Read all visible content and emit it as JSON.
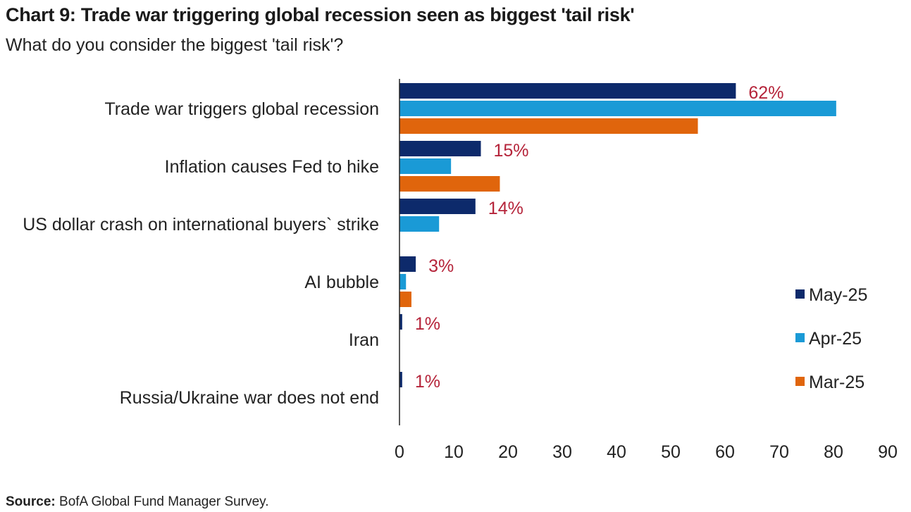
{
  "title": "Chart 9: Trade war triggering global recession seen as biggest 'tail risk'",
  "subtitle": "What do you consider the biggest 'tail risk'?",
  "source_label": "Source:",
  "source_text": "BofA Global Fund Manager Survey.",
  "chart_data": {
    "type": "bar",
    "orientation": "horizontal",
    "categories": [
      "Trade war triggers global recession",
      "Inflation causes Fed to hike",
      "US dollar crash on international buyers` strike",
      "AI bubble",
      "Iran",
      "Russia/Ukraine war does not end"
    ],
    "series": [
      {
        "name": "May-25",
        "color": "#0d2a6b",
        "values": [
          62,
          15,
          14,
          3,
          0.5,
          0.5
        ]
      },
      {
        "name": "Apr-25",
        "color": "#1a9ad6",
        "values": [
          80.5,
          9.5,
          7.3,
          1.2,
          0,
          0
        ]
      },
      {
        "name": "Mar-25",
        "color": "#e0650c",
        "values": [
          55,
          18.5,
          0,
          2.2,
          0,
          0
        ]
      }
    ],
    "data_labels": [
      "62%",
      "15%",
      "14%",
      "3%",
      "1%",
      "1%"
    ],
    "data_label_color": "#b5243a",
    "xlim": [
      0,
      90
    ],
    "xticks": [
      "0",
      "10",
      "20",
      "30",
      "40",
      "50",
      "60",
      "70",
      "80",
      "90"
    ],
    "legend_position": "right",
    "grid": false
  }
}
